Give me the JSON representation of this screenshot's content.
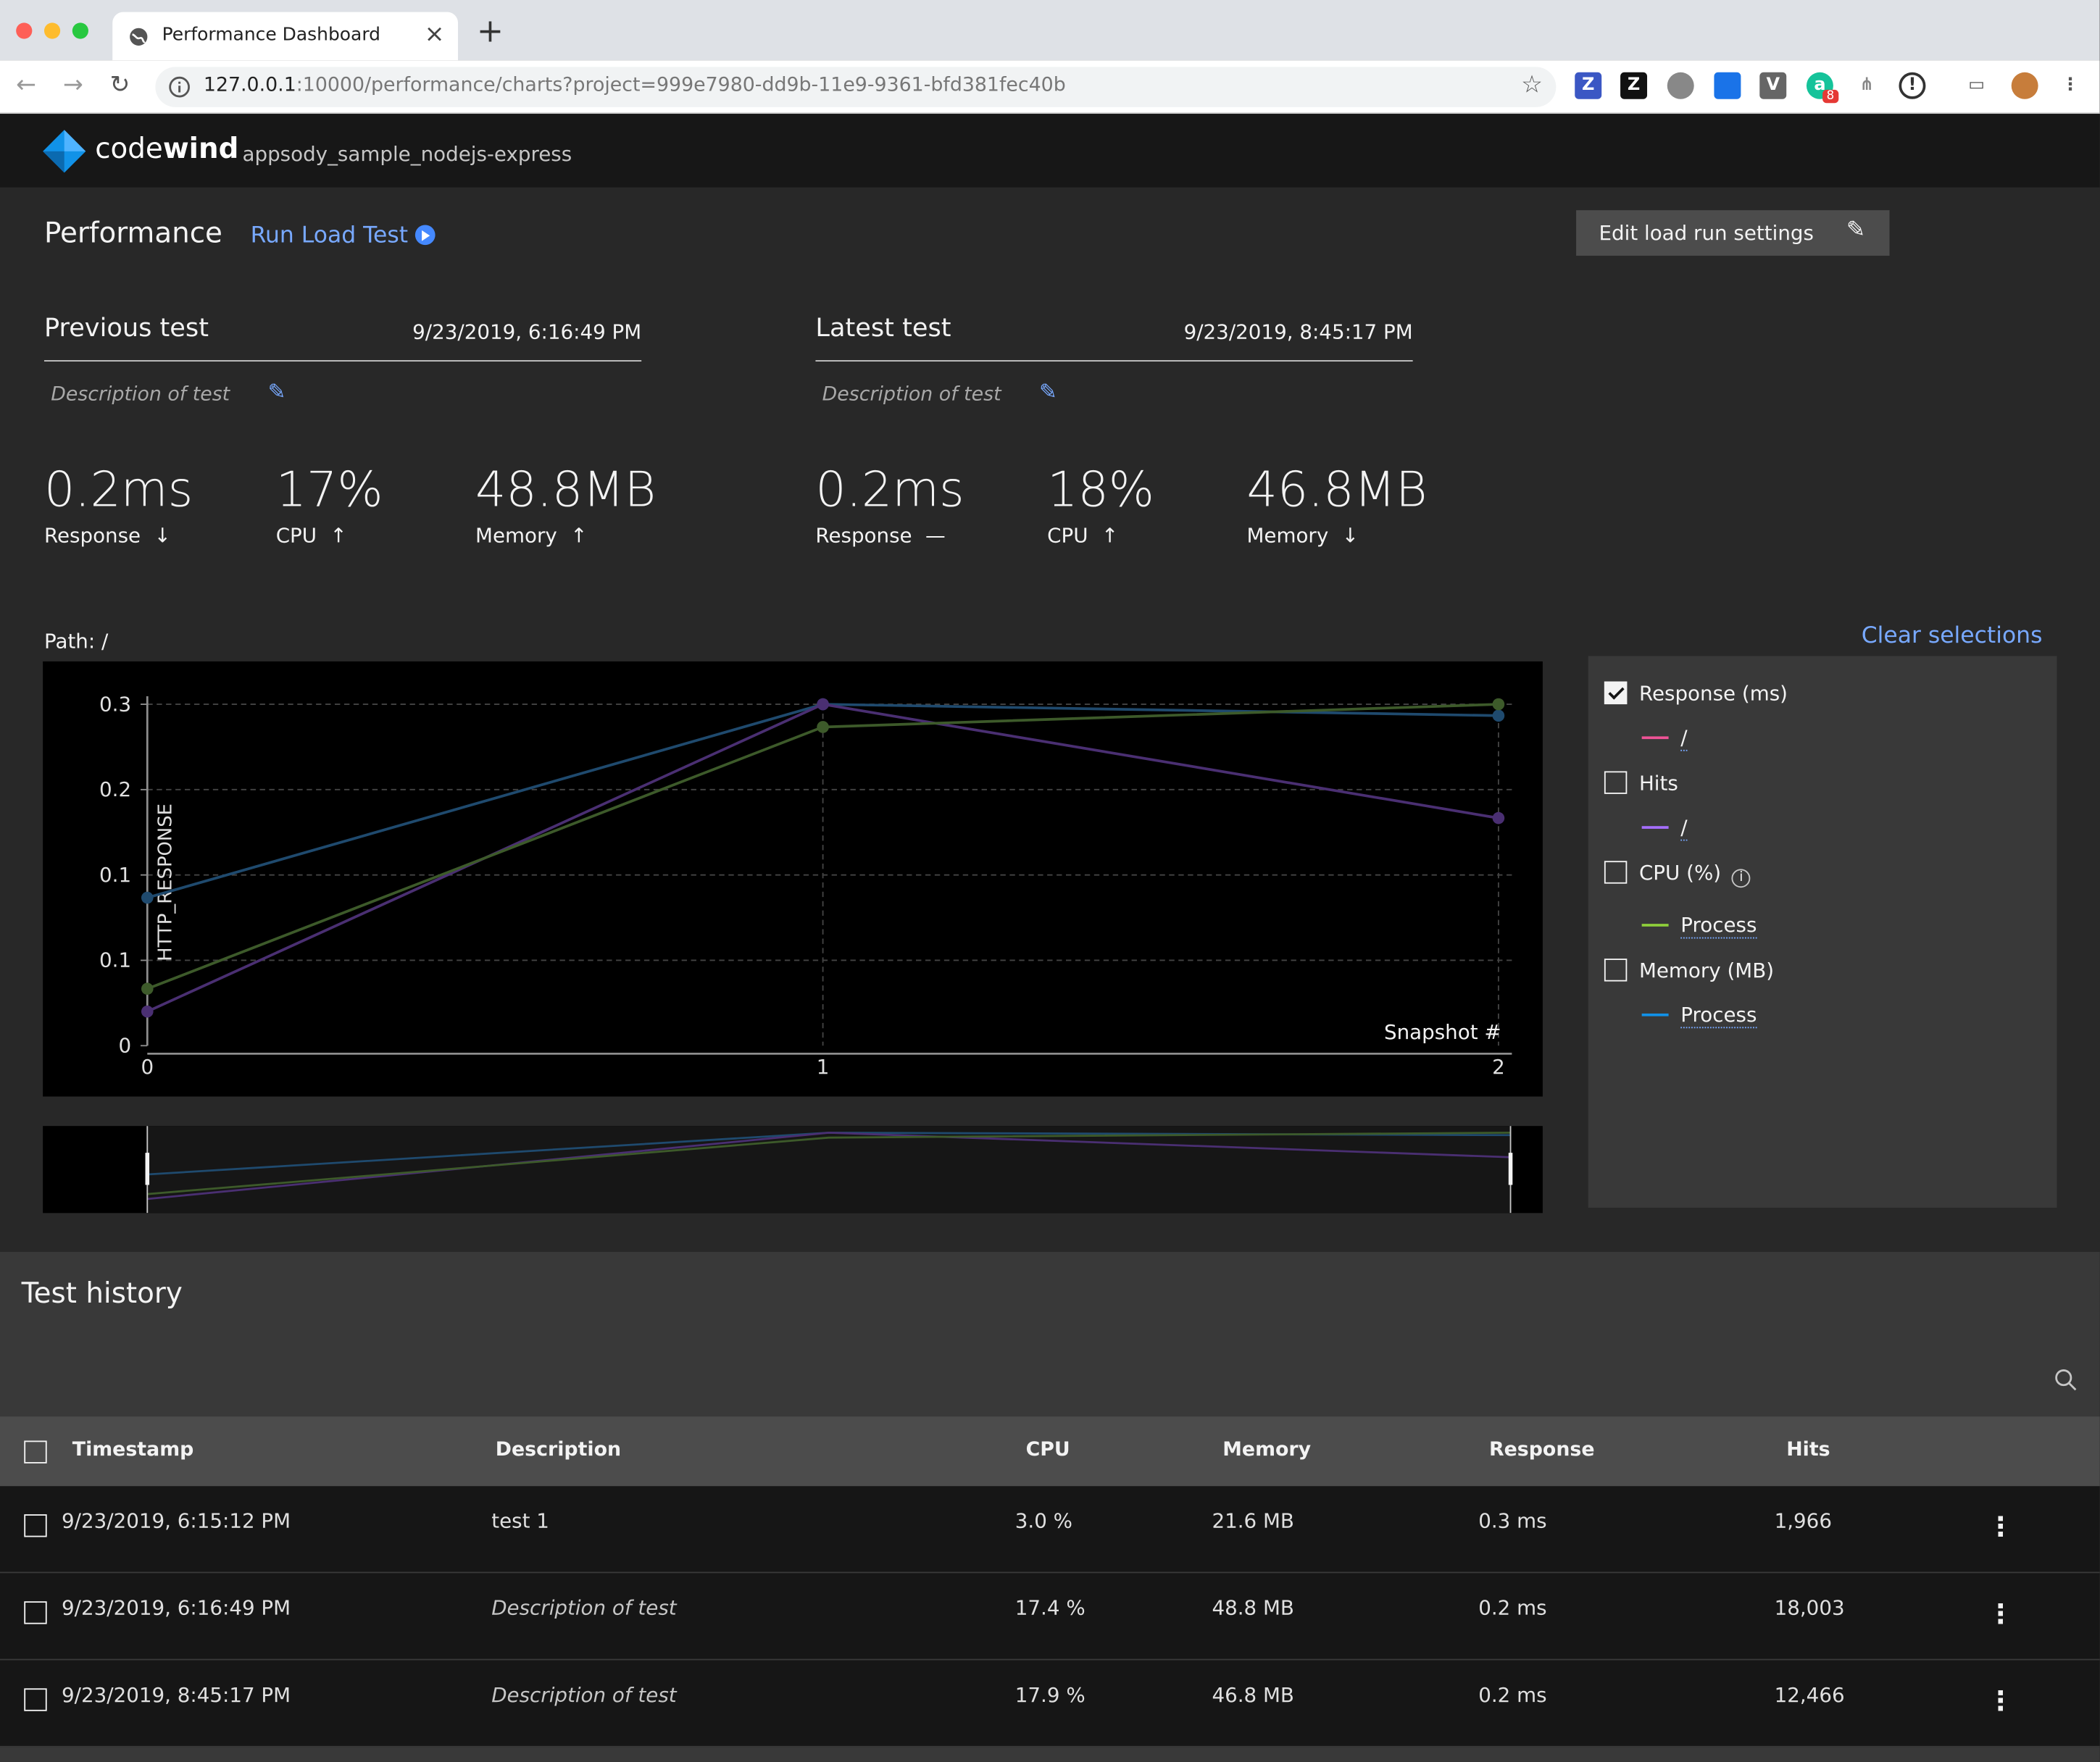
{
  "browser": {
    "tab_title": "Performance Dashboard",
    "url_host": "127.0.0.1",
    "url_rest": ":10000/performance/charts?project=999e7980-dd9b-11e9-9361-bfd381fec40b",
    "extension_badge": "8"
  },
  "app": {
    "brand_light": "code",
    "brand_bold": "wind",
    "project_name": "appsody_sample_nodejs-express"
  },
  "performance": {
    "title": "Performance",
    "run_load_test": "Run Load Test",
    "edit_settings": "Edit load run settings",
    "previous": {
      "name": "Previous test",
      "date": "9/23/2019, 6:16:49 PM",
      "description": "Description of test",
      "response": "0.2ms",
      "response_label": "Response",
      "response_trend": "↓",
      "cpu": "17%",
      "cpu_label": "CPU",
      "cpu_trend": "↑",
      "memory": "48.8MB",
      "memory_label": "Memory",
      "memory_trend": "↑"
    },
    "latest": {
      "name": "Latest test",
      "date": "9/23/2019, 8:45:17 PM",
      "description": "Description of test",
      "response": "0.2ms",
      "response_label": "Response",
      "response_trend": "—",
      "cpu": "18%",
      "cpu_label": "CPU",
      "cpu_trend": "↑",
      "memory": "46.8MB",
      "memory_label": "Memory",
      "memory_trend": "↓"
    },
    "path_label": "Path: /",
    "clear_selections": "Clear selections"
  },
  "legend": {
    "items": [
      {
        "label": "Response (ms)",
        "checked": true,
        "sub": "/",
        "color": "#ee5396"
      },
      {
        "label": "Hits",
        "checked": false,
        "sub": "/",
        "color": "#a56eff"
      },
      {
        "label": "CPU (%)",
        "checked": false,
        "sub": "Process",
        "color": "#8ecf3a",
        "info": "i"
      },
      {
        "label": "Memory (MB)",
        "checked": false,
        "sub": "Process",
        "color": "#1192e8"
      }
    ]
  },
  "chart_data": {
    "type": "line",
    "ylabel": "HTTP_RESPONSE",
    "xlabel": "Snapshot #",
    "x": [
      0,
      1,
      2
    ],
    "x_ticks": [
      "0",
      "1",
      "2"
    ],
    "y_ticks": [
      "0",
      "0.1",
      "0.1",
      "0.2",
      "0.3"
    ],
    "ylim": [
      0,
      0.3
    ],
    "grid": true,
    "series": [
      {
        "color": "#1f4a6e",
        "values": [
          0.13,
          0.3,
          0.29
        ]
      },
      {
        "color": "#4a2f72",
        "values": [
          0.03,
          0.3,
          0.2
        ]
      },
      {
        "color": "#3d5a2a",
        "values": [
          0.05,
          0.28,
          0.3
        ]
      }
    ]
  },
  "history": {
    "title": "Test history",
    "columns": [
      "Timestamp",
      "Description",
      "CPU",
      "Memory",
      "Response",
      "Hits"
    ],
    "rows": [
      {
        "timestamp": "9/23/2019, 6:15:12 PM",
        "description": "test 1",
        "italic": false,
        "cpu": "3.0 %",
        "memory": "21.6 MB",
        "response": "0.3 ms",
        "hits": "1,966"
      },
      {
        "timestamp": "9/23/2019, 6:16:49 PM",
        "description": "Description of test",
        "italic": true,
        "cpu": "17.4 %",
        "memory": "48.8 MB",
        "response": "0.2 ms",
        "hits": "18,003"
      },
      {
        "timestamp": "9/23/2019, 8:45:17 PM",
        "description": "Description of test",
        "italic": true,
        "cpu": "17.9 %",
        "memory": "46.8 MB",
        "response": "0.2 ms",
        "hits": "12,466"
      }
    ]
  }
}
